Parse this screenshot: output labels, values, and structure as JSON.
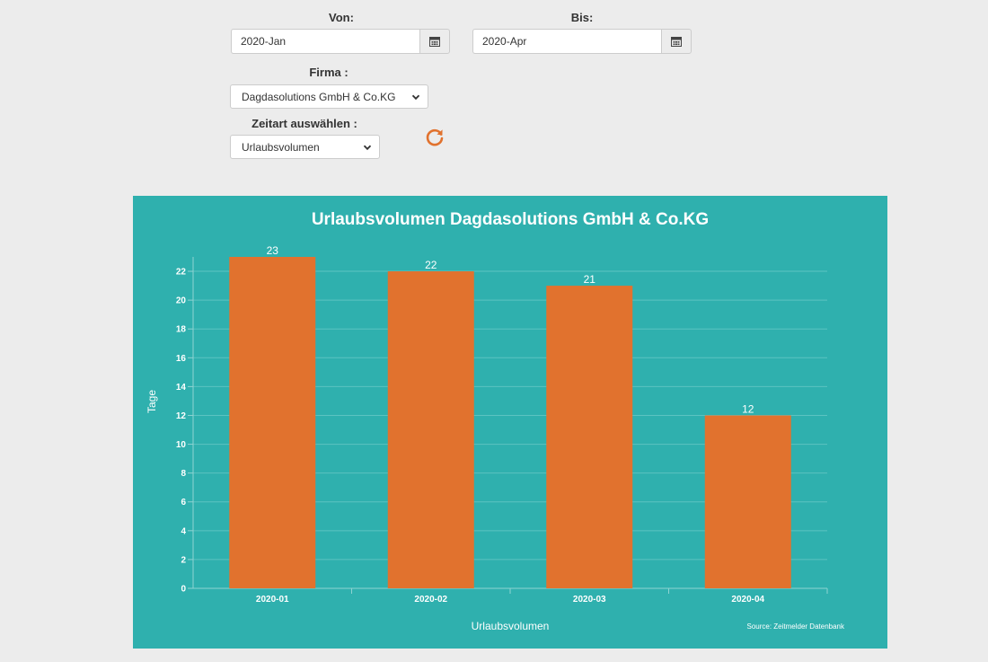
{
  "filters": {
    "von_label": "Von:",
    "von_value": "2020-Jan",
    "bis_label": "Bis:",
    "bis_value": "2020-Apr",
    "firma_label": "Firma :",
    "firma_value": "Dagdasolutions GmbH & Co.KG",
    "zeitart_label": "Zeitart auswählen :",
    "zeitart_value": "Urlaubsvolumen"
  },
  "colors": {
    "chart_bg": "#2fb0ae",
    "bar": "#e1722e",
    "accent": "#e1722e"
  },
  "icons": {
    "calendar": "calendar-icon",
    "refresh": "refresh-icon",
    "dropdown": "chevron-down-icon"
  },
  "chart_data": {
    "type": "bar",
    "title": "Urlaubsvolumen Dagdasolutions GmbH & Co.KG",
    "xlabel": "Urlaubsvolumen",
    "ylabel": "Tage",
    "categories": [
      "2020-01",
      "2020-02",
      "2020-03",
      "2020-04"
    ],
    "values": [
      23,
      22,
      21,
      12
    ],
    "ylim": [
      0,
      23
    ],
    "yticks": [
      0,
      2,
      4,
      6,
      8,
      10,
      12,
      14,
      16,
      18,
      20,
      22
    ],
    "grid": true,
    "data_labels": true,
    "credit": "Source: Zeitmelder Datenbank"
  }
}
